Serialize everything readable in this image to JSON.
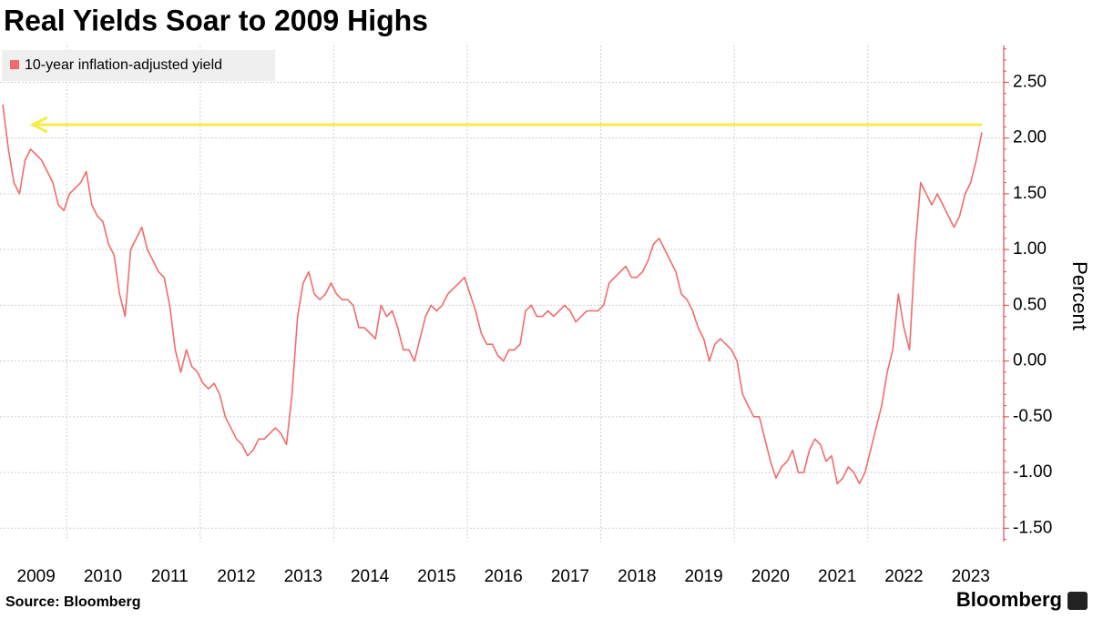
{
  "chart_data": {
    "type": "line",
    "title": "Real Yields Soar to 2009 Highs",
    "y_axis_label": "Percent",
    "source": "Source: Bloomberg",
    "credit": "Bloomberg",
    "categories": [
      null,
      null,
      null,
      null,
      null,
      null,
      "2009",
      null,
      null,
      null,
      null,
      null,
      null,
      null,
      null,
      null,
      null,
      null,
      "2010",
      null,
      null,
      null,
      null,
      null,
      null,
      null,
      null,
      null,
      null,
      null,
      "2011",
      null,
      null,
      null,
      null,
      null,
      null,
      null,
      null,
      null,
      null,
      null,
      "2012",
      null,
      null,
      null,
      null,
      null,
      null,
      null,
      null,
      null,
      null,
      null,
      "2013",
      null,
      null,
      null,
      null,
      null,
      null,
      null,
      null,
      null,
      null,
      null,
      "2014",
      null,
      null,
      null,
      null,
      null,
      null,
      null,
      null,
      null,
      null,
      null,
      "2015",
      null,
      null,
      null,
      null,
      null,
      null,
      null,
      null,
      null,
      null,
      null,
      "2016",
      null,
      null,
      null,
      null,
      null,
      null,
      null,
      null,
      null,
      null,
      null,
      "2017",
      null,
      null,
      null,
      null,
      null,
      null,
      null,
      null,
      null,
      null,
      null,
      "2018",
      null,
      null,
      null,
      null,
      null,
      null,
      null,
      null,
      null,
      null,
      null,
      "2019",
      null,
      null,
      null,
      null,
      null,
      null,
      null,
      null,
      null,
      null,
      null,
      "2020",
      null,
      null,
      null,
      null,
      null,
      null,
      null,
      null,
      null,
      null,
      null,
      "2021",
      null,
      null,
      null,
      null,
      null,
      null,
      null,
      null,
      null,
      null,
      null,
      "2022",
      null,
      null,
      null,
      null,
      null,
      null,
      null,
      null,
      null,
      null,
      null,
      "2023",
      null,
      null
    ],
    "series": [
      {
        "name": "10-year inflation-adjusted yield",
        "color": "#f26b6b",
        "values": [
          2.3,
          1.9,
          1.6,
          1.5,
          1.8,
          1.9,
          1.85,
          1.8,
          1.7,
          1.6,
          1.4,
          1.35,
          1.5,
          1.55,
          1.6,
          1.7,
          1.4,
          1.3,
          1.25,
          1.05,
          0.95,
          0.6,
          0.4,
          1.0,
          1.1,
          1.2,
          1.0,
          0.9,
          0.8,
          0.75,
          0.5,
          0.1,
          -0.1,
          0.1,
          -0.05,
          -0.1,
          -0.2,
          -0.25,
          -0.2,
          -0.3,
          -0.5,
          -0.6,
          -0.7,
          -0.75,
          -0.85,
          -0.8,
          -0.7,
          -0.7,
          -0.65,
          -0.6,
          -0.65,
          -0.75,
          -0.3,
          0.4,
          0.7,
          0.8,
          0.6,
          0.55,
          0.6,
          0.7,
          0.6,
          0.55,
          0.55,
          0.5,
          0.3,
          0.3,
          0.25,
          0.2,
          0.5,
          0.4,
          0.45,
          0.3,
          0.1,
          0.1,
          0.0,
          0.2,
          0.4,
          0.5,
          0.45,
          0.5,
          0.6,
          0.65,
          0.7,
          0.75,
          0.6,
          0.45,
          0.25,
          0.15,
          0.15,
          0.05,
          0.0,
          0.1,
          0.1,
          0.15,
          0.45,
          0.5,
          0.4,
          0.4,
          0.45,
          0.4,
          0.45,
          0.5,
          0.45,
          0.35,
          0.4,
          0.45,
          0.45,
          0.45,
          0.5,
          0.7,
          0.75,
          0.8,
          0.85,
          0.75,
          0.75,
          0.8,
          0.9,
          1.05,
          1.1,
          1.0,
          0.9,
          0.8,
          0.6,
          0.55,
          0.45,
          0.3,
          0.2,
          0.0,
          0.15,
          0.2,
          0.15,
          0.1,
          0.0,
          -0.3,
          -0.4,
          -0.5,
          -0.5,
          -0.7,
          -0.9,
          -1.05,
          -0.95,
          -0.9,
          -0.8,
          -1.0,
          -1.0,
          -0.8,
          -0.7,
          -0.75,
          -0.9,
          -0.85,
          -1.1,
          -1.05,
          -0.95,
          -1.0,
          -1.1,
          -1.0,
          -0.8,
          -0.6,
          -0.4,
          -0.1,
          0.1,
          0.6,
          0.3,
          0.1,
          1.0,
          1.6,
          1.5,
          1.4,
          1.5,
          1.4,
          1.3,
          1.2,
          1.3,
          1.5,
          1.6,
          1.8,
          2.05
        ]
      }
    ],
    "ylim": [
      -1.62,
      2.83
    ],
    "yticks": [
      {
        "value": 2.5,
        "label": "2.50"
      },
      {
        "value": 2.0,
        "label": "2.00"
      },
      {
        "value": 1.5,
        "label": "1.50"
      },
      {
        "value": 1.0,
        "label": "1.00"
      },
      {
        "value": 0.5,
        "label": "0.50"
      },
      {
        "value": 0.0,
        "label": "0.00"
      },
      {
        "value": -0.5,
        "label": "-0.50"
      },
      {
        "value": -1.0,
        "label": "-1.00"
      },
      {
        "value": -1.5,
        "label": "-1.50"
      }
    ],
    "grid": true,
    "legend": "top-left"
  }
}
